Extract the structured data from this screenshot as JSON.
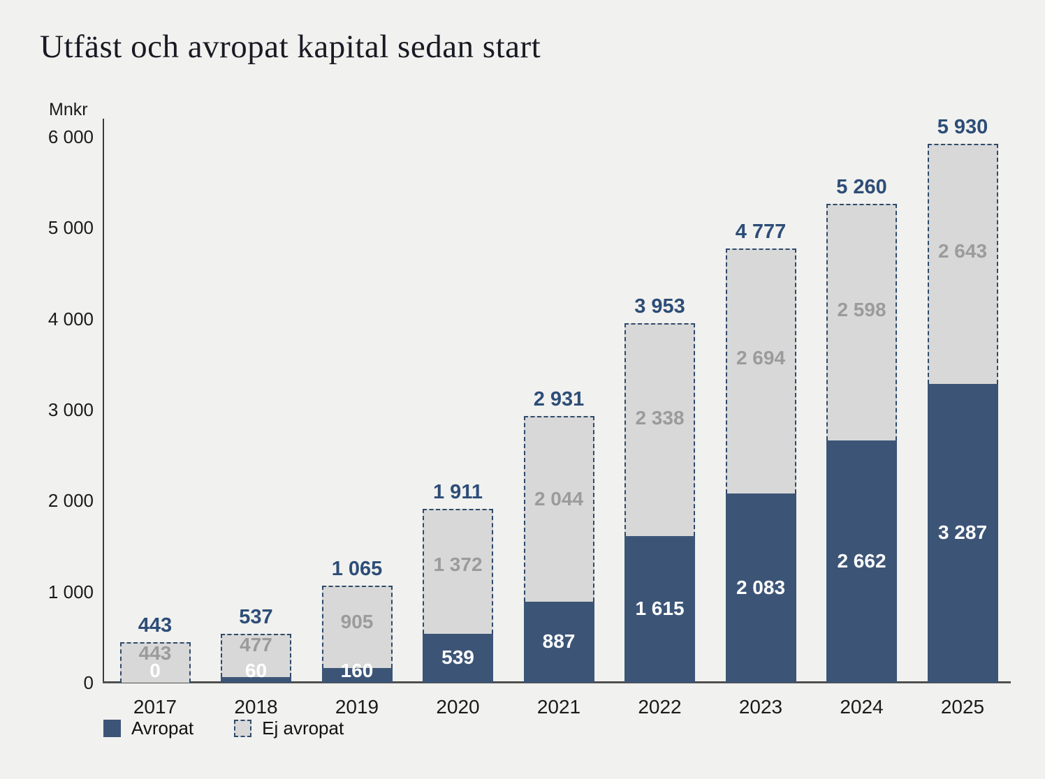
{
  "page": {
    "background": "#f1f1ef"
  },
  "chart_data": {
    "type": "bar",
    "stacked": true,
    "title": "Utfäst och avropat kapital sedan start",
    "ylabel": "Mnkr",
    "xlabel": "",
    "ylim": [
      0,
      6000
    ],
    "grid": false,
    "legend_position": "bottom-left",
    "y_ticks": [
      {
        "value": 0,
        "label": "0"
      },
      {
        "value": 1000,
        "label": "1 000"
      },
      {
        "value": 2000,
        "label": "2 000"
      },
      {
        "value": 3000,
        "label": "3 000"
      },
      {
        "value": 4000,
        "label": "4 000"
      },
      {
        "value": 5000,
        "label": "5 000"
      },
      {
        "value": 6000,
        "label": "6 000"
      }
    ],
    "categories": [
      "2017",
      "2018",
      "2019",
      "2020",
      "2021",
      "2022",
      "2023",
      "2024",
      "2025"
    ],
    "series": [
      {
        "name": "Avropat",
        "color": "#3c5577",
        "label_color": "#ffffff",
        "values": [
          0,
          60,
          160,
          539,
          887,
          1615,
          2083,
          2662,
          3287
        ],
        "labels": [
          "0",
          "60",
          "160",
          "539",
          "887",
          "1 615",
          "2 083",
          "2 662",
          "3 287"
        ]
      },
      {
        "name": "Ej avropat",
        "color": "#d8d8d8",
        "border_color": "#2e4a6b",
        "label_color": "#9b9b9b",
        "values": [
          443,
          477,
          905,
          1372,
          2044,
          2338,
          2694,
          2598,
          2643
        ],
        "labels": [
          "443",
          "477",
          "905",
          "1 372",
          "2 044",
          "2 338",
          "2 694",
          "2 598",
          "2 643"
        ]
      }
    ],
    "totals": {
      "color": "#2d4d77",
      "values": [
        443,
        537,
        1065,
        1911,
        2931,
        3953,
        4777,
        5260,
        5930
      ],
      "labels": [
        "443",
        "537",
        "1 065",
        "1 911",
        "2 931",
        "3 953",
        "4 777",
        "5 260",
        "5 930"
      ]
    }
  }
}
